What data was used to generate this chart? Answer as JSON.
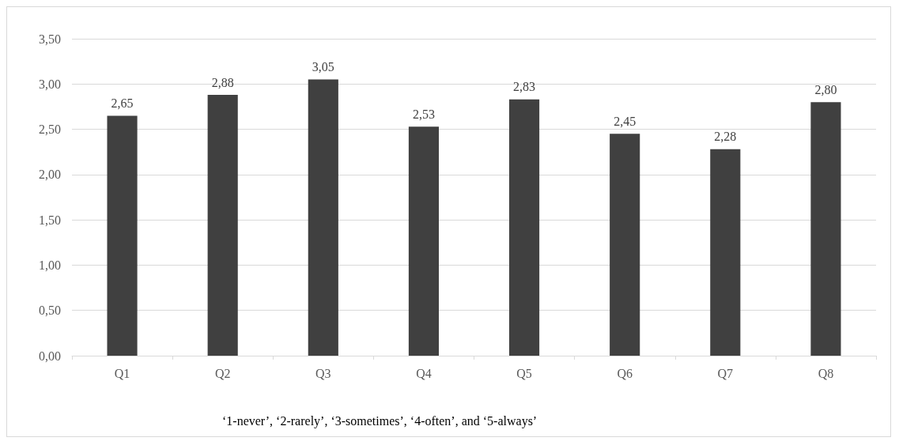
{
  "chart_data": {
    "type": "bar",
    "categories": [
      "Q1",
      "Q2",
      "Q3",
      "Q4",
      "Q5",
      "Q6",
      "Q7",
      "Q8"
    ],
    "values": [
      2.65,
      2.88,
      3.05,
      2.53,
      2.83,
      2.45,
      2.28,
      2.8
    ],
    "value_labels": [
      "2,65",
      "2,88",
      "3,05",
      "2,53",
      "2,83",
      "2,45",
      "2,28",
      "2,80"
    ],
    "color": "#404040",
    "ylim": [
      0,
      3.5
    ],
    "yticks": [
      {
        "value": 0,
        "label": "0,00"
      },
      {
        "value": 0.5,
        "label": "0,50"
      },
      {
        "value": 1,
        "label": "1,00"
      },
      {
        "value": 1.5,
        "label": "1,50"
      },
      {
        "value": 2,
        "label": "2,00"
      },
      {
        "value": 2.5,
        "label": "2,50"
      },
      {
        "value": 3,
        "label": "3,00"
      },
      {
        "value": 3.5,
        "label": "3,50"
      }
    ],
    "grid": "y",
    "annotations": [
      "‘1-never’, ‘2-rarely’, ‘3-sometimes’, ‘4-often’, and ‘5-always’"
    ]
  }
}
